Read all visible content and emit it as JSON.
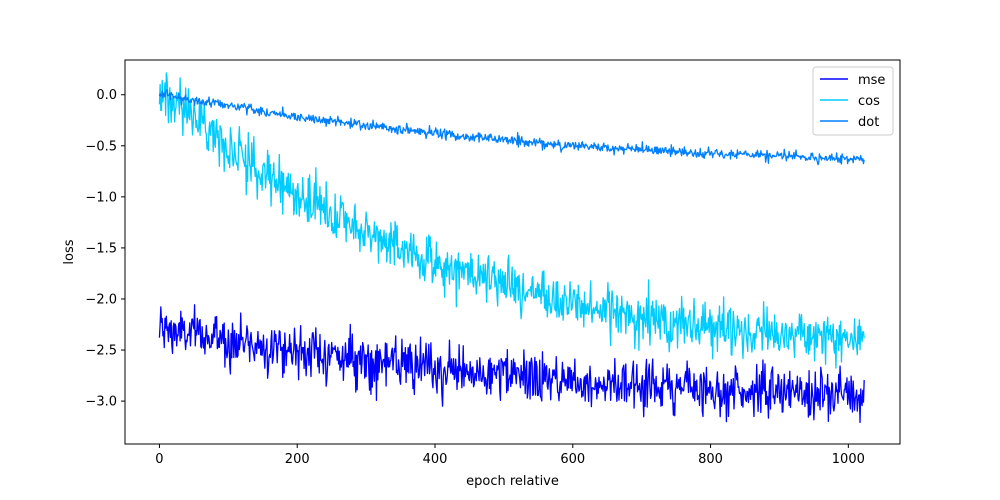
{
  "chart_data": {
    "type": "line",
    "title": "",
    "xlabel": "epoch relative",
    "ylabel": "loss",
    "xlim": [
      -50,
      1075
    ],
    "ylim": [
      -3.42,
      0.34
    ],
    "grid": false,
    "legend_placement": "upper-right",
    "x_ticks": [
      0,
      200,
      400,
      600,
      800,
      1000
    ],
    "x_tick_labels": [
      "0",
      "200",
      "400",
      "600",
      "800",
      "1000"
    ],
    "y_ticks": [
      0.0,
      -0.5,
      -1.0,
      -1.5,
      -2.0,
      -2.5,
      -3.0
    ],
    "y_tick_labels": [
      "0.0",
      "−0.5",
      "−1.0",
      "−1.5",
      "−2.0",
      "−2.5",
      "−3.0"
    ],
    "x_range": [
      0,
      1023
    ],
    "x_step": 1,
    "series": [
      {
        "name": "mse",
        "color": "#0000ff",
        "trend": [
          [
            0,
            -2.3
          ],
          [
            200,
            -2.5
          ],
          [
            400,
            -2.7
          ],
          [
            600,
            -2.8
          ],
          [
            800,
            -2.88
          ],
          [
            1023,
            -2.95
          ]
        ],
        "noise_amplitude": 0.12
      },
      {
        "name": "cos",
        "color": "#00ccff",
        "trend": [
          [
            0,
            0.02
          ],
          [
            50,
            -0.2
          ],
          [
            100,
            -0.5
          ],
          [
            200,
            -1.0
          ],
          [
            300,
            -1.35
          ],
          [
            400,
            -1.65
          ],
          [
            500,
            -1.85
          ],
          [
            600,
            -2.05
          ],
          [
            700,
            -2.18
          ],
          [
            800,
            -2.28
          ],
          [
            1023,
            -2.4
          ]
        ],
        "noise_amplitude": 0.12
      },
      {
        "name": "dot",
        "color": "#0080ff",
        "trend": [
          [
            0,
            0.0
          ],
          [
            100,
            -0.1
          ],
          [
            200,
            -0.22
          ],
          [
            400,
            -0.38
          ],
          [
            600,
            -0.5
          ],
          [
            800,
            -0.58
          ],
          [
            1023,
            -0.63
          ]
        ],
        "noise_amplitude": 0.025
      }
    ]
  }
}
